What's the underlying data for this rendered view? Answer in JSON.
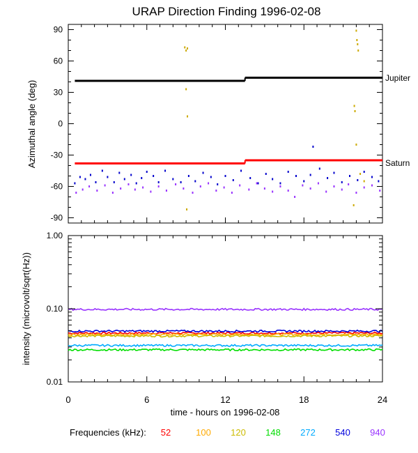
{
  "chart_data": [
    {
      "type": "scatter",
      "title": "URAP Direction Finding  1996-02-08",
      "ylabel": "Azimuthal angle (deg)",
      "xlim": [
        0,
        24
      ],
      "ylim": [
        -95,
        95
      ],
      "yticks": [
        90,
        60,
        30,
        0,
        -30,
        -60,
        -90
      ],
      "ytick_labels": [
        "90",
        "60",
        "30",
        "0",
        "-30",
        "-60",
        "-90"
      ],
      "reference_lines": [
        {
          "name": "Jupiter",
          "color": "#000000",
          "segments": [
            {
              "x": [
                0.5,
                13.5
              ],
              "y": 41
            },
            {
              "x": [
                13.5,
                24
              ],
              "y": 44
            }
          ]
        },
        {
          "name": "Saturn",
          "color": "#ff0000",
          "segments": [
            {
              "x": [
                0.5,
                13.5
              ],
              "y": -38
            },
            {
              "x": [
                13.5,
                24
              ],
              "y": -35
            }
          ]
        }
      ],
      "series": [
        {
          "color": "#0000cc",
          "points": [
            [
              0.5,
              -57
            ],
            [
              0.9,
              -51
            ],
            [
              1.3,
              -53
            ],
            [
              1.7,
              -49
            ],
            [
              2.1,
              -56
            ],
            [
              2.6,
              -45
            ],
            [
              3.0,
              -51
            ],
            [
              3.5,
              -56
            ],
            [
              3.9,
              -47
            ],
            [
              4.3,
              -53
            ],
            [
              4.8,
              -49
            ],
            [
              5.2,
              -57
            ],
            [
              5.6,
              -52
            ],
            [
              6.0,
              -46
            ],
            [
              6.5,
              -50
            ],
            [
              6.9,
              -56
            ],
            [
              7.4,
              -45
            ],
            [
              8.0,
              -53
            ],
            [
              8.6,
              -56
            ],
            [
              9.2,
              -50
            ],
            [
              9.7,
              -55
            ],
            [
              10.3,
              -47
            ],
            [
              10.9,
              -51
            ],
            [
              11.4,
              -58
            ],
            [
              12.0,
              -50
            ],
            [
              12.6,
              -54
            ],
            [
              13.2,
              -45
            ],
            [
              13.9,
              -52
            ],
            [
              14.5,
              -57
            ],
            [
              15.1,
              -48
            ],
            [
              15.6,
              -53
            ],
            [
              16.2,
              -57
            ],
            [
              16.8,
              -46
            ],
            [
              17.4,
              -50
            ],
            [
              18.0,
              -55
            ],
            [
              18.5,
              -49
            ],
            [
              18.7,
              -22
            ],
            [
              19.2,
              -43
            ],
            [
              19.8,
              -52
            ],
            [
              20.3,
              -47
            ],
            [
              20.9,
              -56
            ],
            [
              21.5,
              -50
            ],
            [
              22.1,
              -54
            ],
            [
              22.6,
              -46
            ],
            [
              23.2,
              -51
            ],
            [
              23.7,
              -55
            ]
          ]
        },
        {
          "color": "#9933ff",
          "points": [
            [
              0.6,
              -66
            ],
            [
              1.1,
              -63
            ],
            [
              1.6,
              -60
            ],
            [
              2.2,
              -64
            ],
            [
              2.8,
              -59
            ],
            [
              3.4,
              -66
            ],
            [
              4.0,
              -62
            ],
            [
              4.6,
              -58
            ],
            [
              5.1,
              -63
            ],
            [
              5.7,
              -61
            ],
            [
              6.3,
              -65
            ],
            [
              6.9,
              -60
            ],
            [
              7.5,
              -64
            ],
            [
              8.2,
              -58
            ],
            [
              8.8,
              -62
            ],
            [
              9.5,
              -66
            ],
            [
              10.1,
              -60
            ],
            [
              10.7,
              -57
            ],
            [
              11.3,
              -64
            ],
            [
              11.9,
              -61
            ],
            [
              12.5,
              -66
            ],
            [
              13.1,
              -59
            ],
            [
              13.8,
              -63
            ],
            [
              14.4,
              -57
            ],
            [
              15.0,
              -62
            ],
            [
              15.6,
              -65
            ],
            [
              16.2,
              -60
            ],
            [
              16.8,
              -64
            ],
            [
              17.3,
              -70
            ],
            [
              17.9,
              -59
            ],
            [
              18.5,
              -62
            ],
            [
              19.1,
              -57
            ],
            [
              19.7,
              -65
            ],
            [
              20.3,
              -60
            ],
            [
              20.9,
              -63
            ],
            [
              21.4,
              -58
            ],
            [
              22.0,
              -66
            ],
            [
              22.6,
              -61
            ],
            [
              23.2,
              -59
            ],
            [
              23.8,
              -64
            ]
          ]
        },
        {
          "color": "#ccaa00",
          "points": [
            [
              8.9,
              73
            ],
            [
              9.0,
              70
            ],
            [
              9.1,
              72
            ],
            [
              9.0,
              33
            ],
            [
              9.1,
              7
            ],
            [
              9.05,
              -82
            ],
            [
              22.0,
              89
            ],
            [
              22.05,
              80
            ],
            [
              22.1,
              76
            ],
            [
              22.15,
              70
            ],
            [
              21.85,
              17
            ],
            [
              21.9,
              12
            ],
            [
              22.0,
              -20
            ],
            [
              21.8,
              -78
            ],
            [
              22.3,
              -48
            ],
            [
              22.6,
              -55
            ]
          ]
        }
      ]
    },
    {
      "type": "line",
      "xlabel": "time - hours on 1996-02-08",
      "ylabel": "intensity (microvolt/sqrt(Hz))",
      "xlim": [
        0,
        24
      ],
      "xticks": [
        0,
        6,
        12,
        18,
        24
      ],
      "xtick_labels": [
        "0",
        "6",
        "12",
        "18",
        "24"
      ],
      "ylim": [
        0.01,
        1.0
      ],
      "yscale": "log",
      "yticks": [
        1.0,
        0.1,
        0.01
      ],
      "ytick_labels": [
        "1.00",
        "0.10",
        "0.01"
      ],
      "legend_label": "Frequencies (kHz):",
      "series": [
        {
          "name": "52",
          "color": "#ff0000",
          "level": 0.0465
        },
        {
          "name": "100",
          "color": "#ffaa00",
          "level": 0.0445
        },
        {
          "name": "120",
          "color": "#ccbb00",
          "level": 0.0425
        },
        {
          "name": "148",
          "color": "#00dd00",
          "level": 0.0275
        },
        {
          "name": "272",
          "color": "#00aaff",
          "level": 0.0315
        },
        {
          "name": "540",
          "color": "#0000dd",
          "level": 0.0495
        },
        {
          "name": "940",
          "color": "#9933ff",
          "level": 0.098
        }
      ]
    }
  ]
}
